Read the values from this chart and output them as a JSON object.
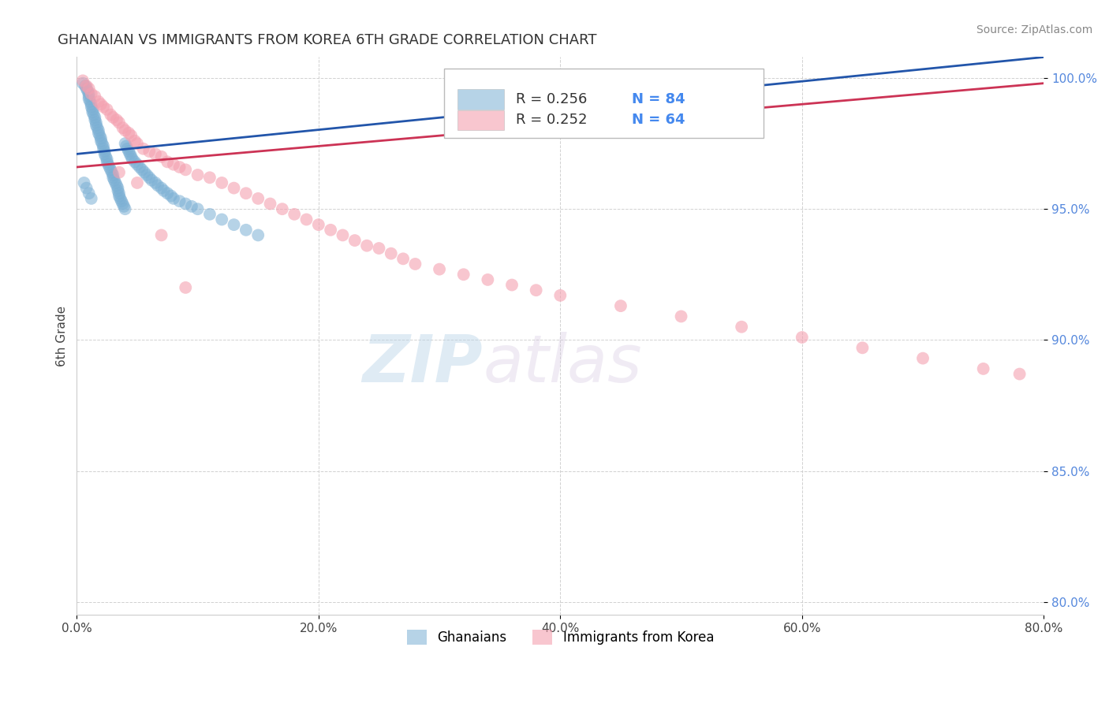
{
  "title": "GHANAIAN VS IMMIGRANTS FROM KOREA 6TH GRADE CORRELATION CHART",
  "source_text": "Source: ZipAtlas.com",
  "ylabel": "6th Grade",
  "xlim": [
    0.0,
    0.8
  ],
  "ylim": [
    0.795,
    1.008
  ],
  "xtick_labels": [
    "0.0%",
    "20.0%",
    "40.0%",
    "60.0%",
    "80.0%"
  ],
  "xtick_vals": [
    0.0,
    0.2,
    0.4,
    0.6,
    0.8
  ],
  "ytick_labels": [
    "100.0%",
    "95.0%",
    "90.0%",
    "85.0%",
    "80.0%"
  ],
  "ytick_vals": [
    1.0,
    0.95,
    0.9,
    0.85,
    0.8
  ],
  "blue_color": "#7bafd4",
  "pink_color": "#f4a0b0",
  "blue_line_color": "#2255aa",
  "pink_line_color": "#cc3355",
  "legend_label_blue": "Ghanaians",
  "legend_label_pink": "Immigrants from Korea",
  "watermark_line1": "ZIP",
  "watermark_line2": "atlas",
  "watermark_color": "#c5dff0",
  "blue_x": [
    0.005,
    0.007,
    0.008,
    0.009,
    0.01,
    0.01,
    0.01,
    0.011,
    0.012,
    0.012,
    0.013,
    0.013,
    0.014,
    0.015,
    0.015,
    0.016,
    0.016,
    0.017,
    0.018,
    0.018,
    0.019,
    0.02,
    0.02,
    0.021,
    0.022,
    0.022,
    0.023,
    0.023,
    0.024,
    0.025,
    0.025,
    0.026,
    0.027,
    0.028,
    0.029,
    0.03,
    0.03,
    0.031,
    0.032,
    0.033,
    0.034,
    0.034,
    0.035,
    0.035,
    0.036,
    0.037,
    0.038,
    0.039,
    0.04,
    0.04,
    0.041,
    0.042,
    0.043,
    0.044,
    0.045,
    0.046,
    0.048,
    0.05,
    0.052,
    0.054,
    0.056,
    0.058,
    0.06,
    0.062,
    0.065,
    0.067,
    0.07,
    0.072,
    0.075,
    0.078,
    0.08,
    0.085,
    0.09,
    0.095,
    0.1,
    0.11,
    0.12,
    0.13,
    0.14,
    0.15,
    0.006,
    0.008,
    0.01,
    0.012
  ],
  "blue_y": [
    0.998,
    0.997,
    0.996,
    0.995,
    0.994,
    0.993,
    0.992,
    0.991,
    0.99,
    0.989,
    0.988,
    0.987,
    0.986,
    0.985,
    0.984,
    0.983,
    0.982,
    0.981,
    0.98,
    0.979,
    0.978,
    0.977,
    0.976,
    0.975,
    0.974,
    0.973,
    0.972,
    0.971,
    0.97,
    0.969,
    0.968,
    0.967,
    0.966,
    0.965,
    0.964,
    0.963,
    0.962,
    0.961,
    0.96,
    0.959,
    0.958,
    0.957,
    0.956,
    0.955,
    0.954,
    0.953,
    0.952,
    0.951,
    0.95,
    0.975,
    0.974,
    0.973,
    0.972,
    0.971,
    0.97,
    0.969,
    0.968,
    0.967,
    0.966,
    0.965,
    0.964,
    0.963,
    0.962,
    0.961,
    0.96,
    0.959,
    0.958,
    0.957,
    0.956,
    0.955,
    0.954,
    0.953,
    0.952,
    0.951,
    0.95,
    0.948,
    0.946,
    0.944,
    0.942,
    0.94,
    0.96,
    0.958,
    0.956,
    0.954
  ],
  "pink_x": [
    0.005,
    0.008,
    0.01,
    0.012,
    0.015,
    0.018,
    0.02,
    0.022,
    0.025,
    0.028,
    0.03,
    0.033,
    0.035,
    0.038,
    0.04,
    0.043,
    0.045,
    0.048,
    0.05,
    0.055,
    0.06,
    0.065,
    0.07,
    0.075,
    0.08,
    0.085,
    0.09,
    0.1,
    0.11,
    0.12,
    0.13,
    0.14,
    0.15,
    0.16,
    0.17,
    0.18,
    0.19,
    0.2,
    0.21,
    0.22,
    0.23,
    0.24,
    0.25,
    0.26,
    0.27,
    0.28,
    0.3,
    0.32,
    0.34,
    0.36,
    0.38,
    0.4,
    0.45,
    0.5,
    0.55,
    0.6,
    0.65,
    0.7,
    0.75,
    0.78,
    0.035,
    0.05,
    0.07,
    0.09
  ],
  "pink_y": [
    0.999,
    0.997,
    0.996,
    0.994,
    0.993,
    0.991,
    0.99,
    0.989,
    0.988,
    0.986,
    0.985,
    0.984,
    0.983,
    0.981,
    0.98,
    0.979,
    0.978,
    0.976,
    0.975,
    0.973,
    0.972,
    0.971,
    0.97,
    0.968,
    0.967,
    0.966,
    0.965,
    0.963,
    0.962,
    0.96,
    0.958,
    0.956,
    0.954,
    0.952,
    0.95,
    0.948,
    0.946,
    0.944,
    0.942,
    0.94,
    0.938,
    0.936,
    0.935,
    0.933,
    0.931,
    0.929,
    0.927,
    0.925,
    0.923,
    0.921,
    0.919,
    0.917,
    0.913,
    0.909,
    0.905,
    0.901,
    0.897,
    0.893,
    0.889,
    0.887,
    0.964,
    0.96,
    0.94,
    0.92
  ]
}
